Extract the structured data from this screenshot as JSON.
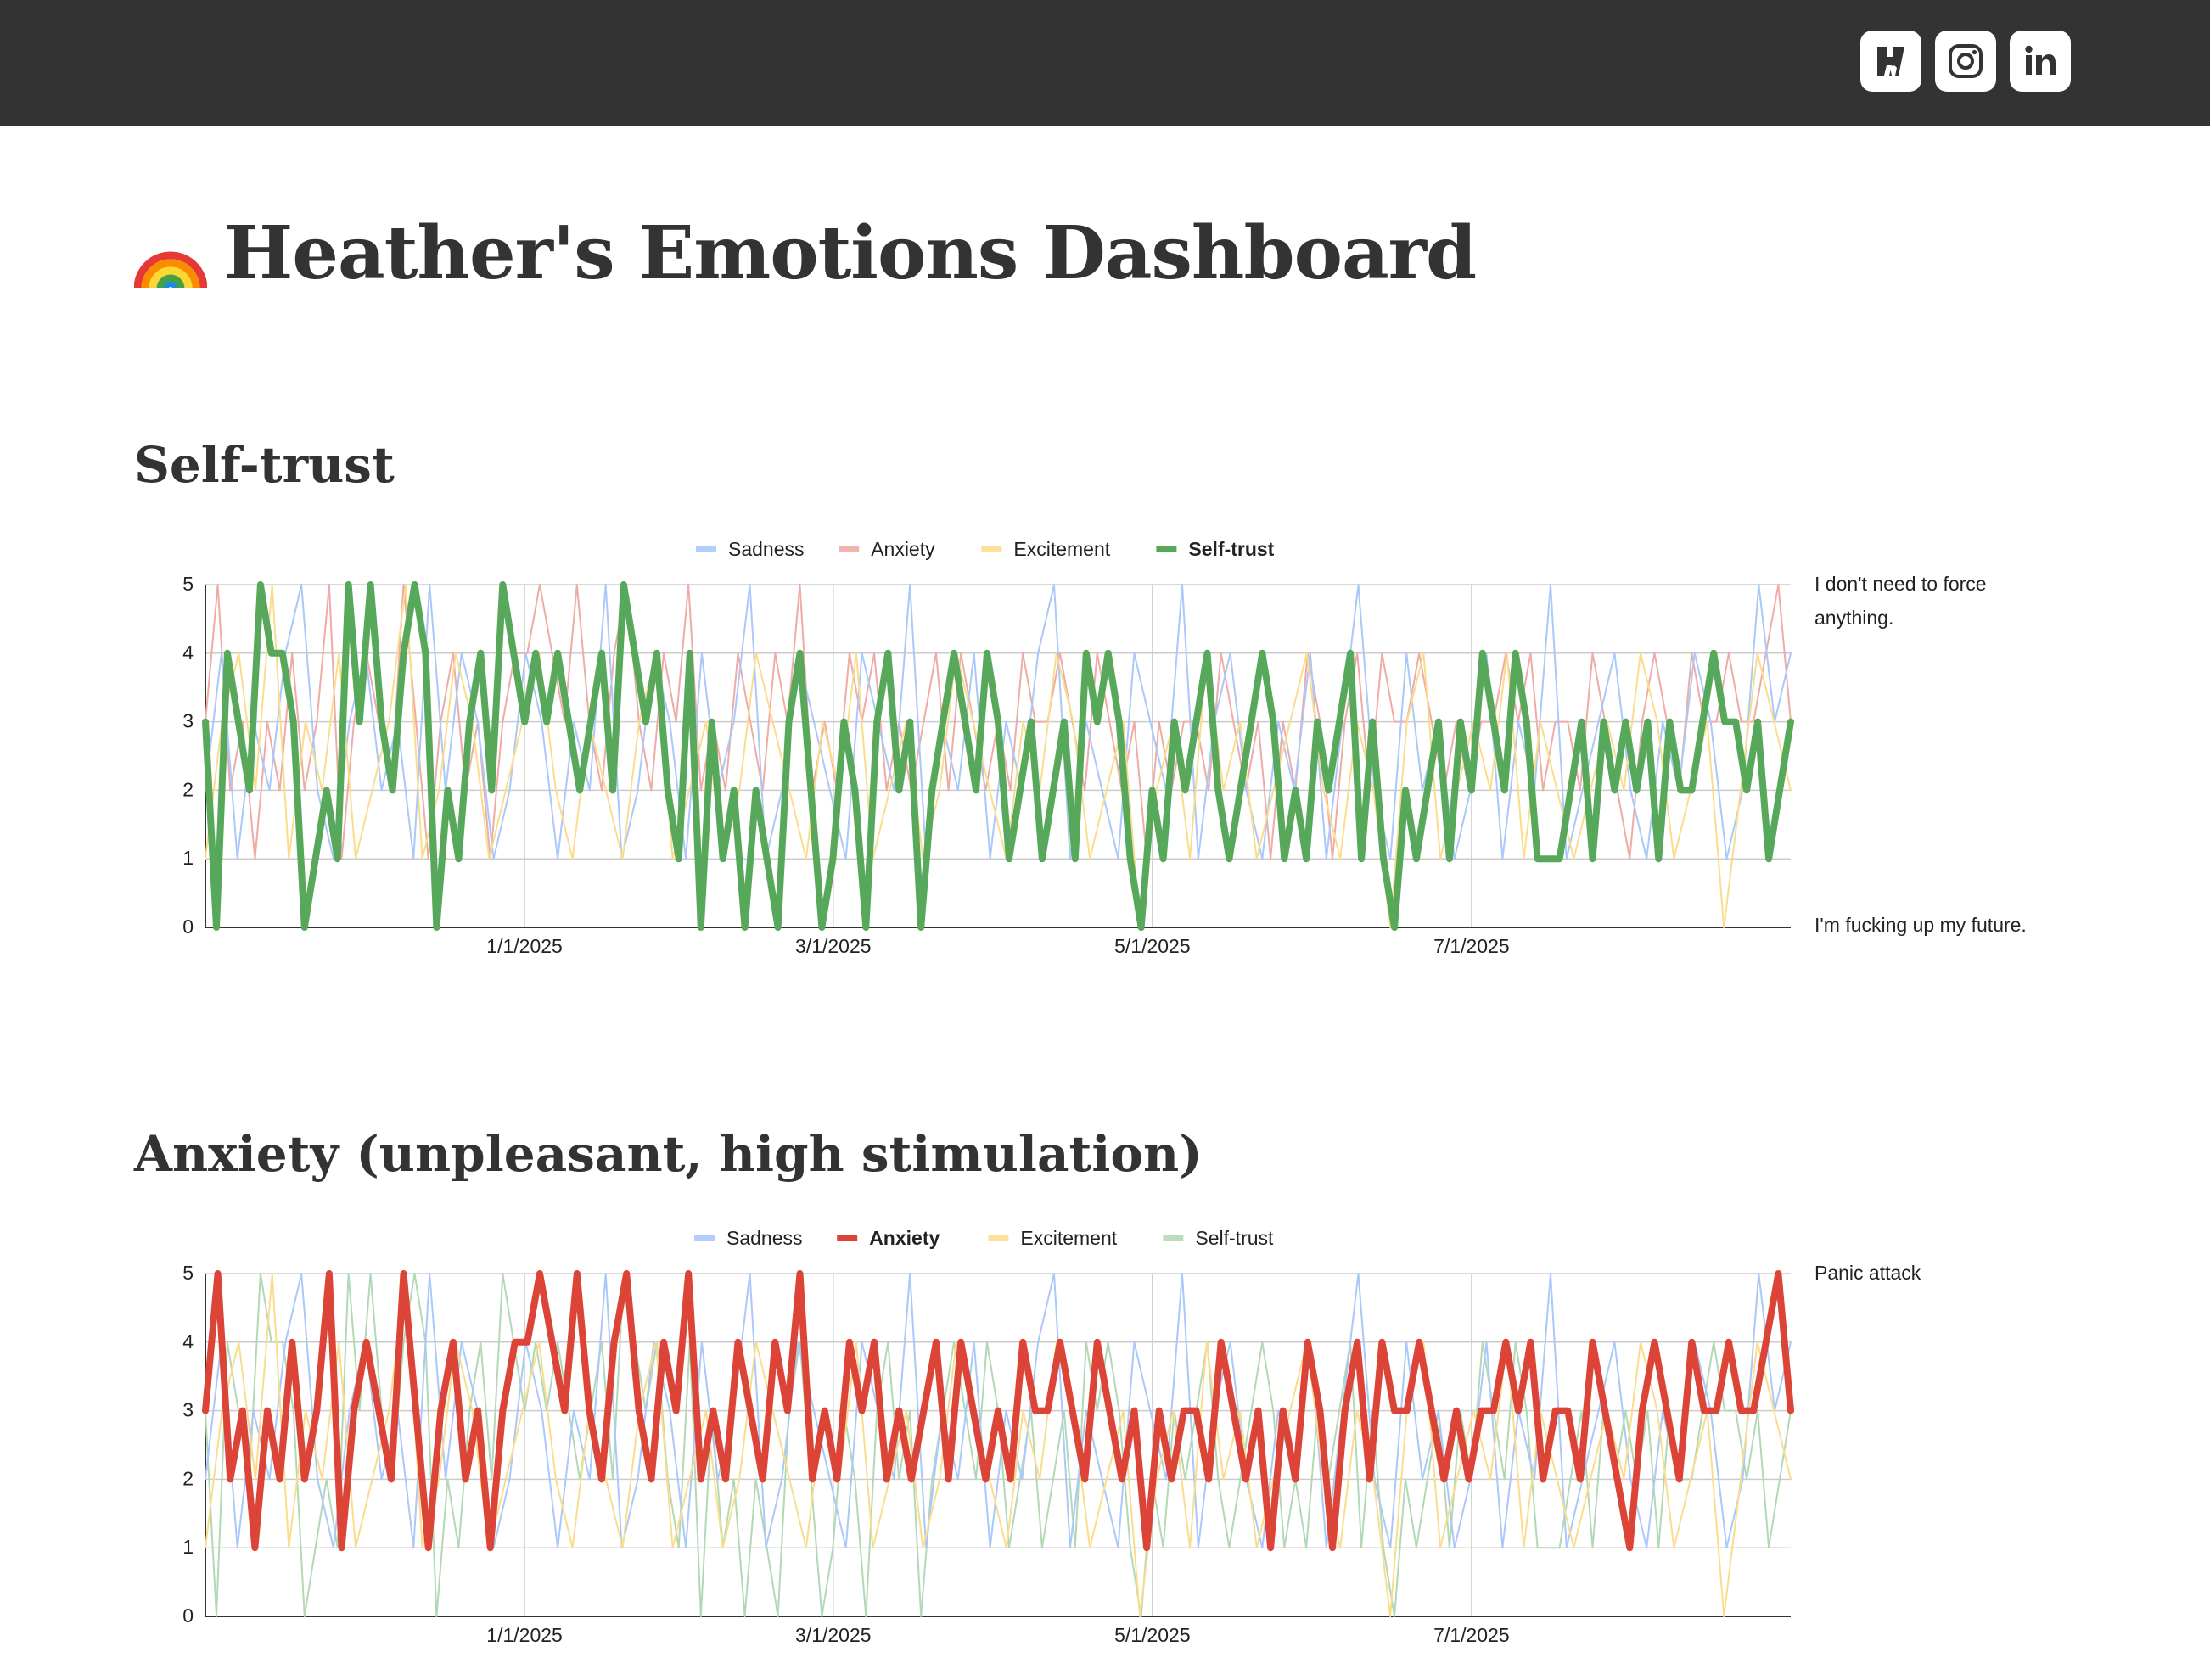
{
  "header": {
    "icons": [
      {
        "name": "hashnode-icon",
        "color": "#333333"
      },
      {
        "name": "instagram-icon",
        "color": "#333333"
      },
      {
        "name": "linkedin-icon",
        "color": "#333333"
      }
    ]
  },
  "page": {
    "title_emoji": "rainbow-icon",
    "title": "Heather's Emotions Dashboard"
  },
  "sections": [
    {
      "title": "Self-trust"
    },
    {
      "title": "Anxiety (unpleasant, high stimulation)"
    }
  ],
  "chart_data": [
    {
      "type": "line",
      "title": "Self-trust",
      "legend": [
        "Sadness",
        "Anxiety",
        "Excitement",
        "Self-trust"
      ],
      "highlighted": "Self-trust",
      "series_colors": {
        "Sadness": "#4285f4",
        "Anxiety": "#db4437",
        "Excitement": "#f4b400",
        "Self-trust": "#57a85a"
      },
      "x_range": [
        "2024-11-01",
        "2025-08-31"
      ],
      "x_ticks": [
        "1/1/2025",
        "3/1/2025",
        "5/1/2025",
        "7/1/2025"
      ],
      "ylim": [
        0,
        5
      ],
      "y_ticks": [
        "0",
        "1",
        "2",
        "3",
        "4",
        "5"
      ],
      "annotations": {
        "top": "I don't need to force anything.",
        "bottom": "I'm fucking up my future."
      },
      "series": [
        {
          "name": "Self-trust",
          "values": [
            3,
            0,
            4,
            3,
            2,
            5,
            4,
            4,
            3,
            0,
            1,
            2,
            1,
            5,
            3,
            5,
            3,
            2,
            4,
            5,
            4,
            0,
            2,
            1,
            3,
            4,
            2,
            5,
            4,
            3,
            4,
            3,
            4,
            3,
            2,
            3,
            4,
            2,
            5,
            4,
            3,
            4,
            2,
            1,
            4,
            0,
            3,
            1,
            2,
            0,
            2,
            1,
            0,
            3,
            4,
            2,
            0,
            1,
            3,
            2,
            0,
            3,
            4,
            2,
            3,
            0,
            2,
            3,
            4,
            3,
            2,
            4,
            3,
            1,
            2,
            3,
            1,
            2,
            3,
            1,
            4,
            3,
            4,
            3,
            1,
            0,
            2,
            1,
            3,
            2,
            3,
            4,
            2,
            1,
            2,
            3,
            4,
            3,
            1,
            2,
            1,
            3,
            2,
            3,
            4,
            1,
            3,
            1,
            0,
            2,
            1,
            2,
            3,
            1,
            3,
            2,
            4,
            3,
            2,
            4,
            3,
            1,
            1,
            1,
            2,
            3,
            1,
            3,
            2,
            3,
            2,
            3,
            1,
            3,
            2,
            2,
            3,
            4,
            3,
            3,
            2,
            3,
            1,
            2,
            3
          ]
        },
        {
          "name": "Anxiety",
          "values": [
            3,
            5,
            2,
            3,
            1,
            3,
            2,
            4,
            2,
            3,
            5,
            1,
            3,
            4,
            3,
            2,
            5,
            3,
            1,
            3,
            4,
            2,
            3,
            1,
            3,
            4,
            4,
            5,
            4,
            3,
            5,
            3,
            2,
            4,
            5,
            3,
            2,
            4,
            3,
            5,
            2,
            3,
            2,
            4,
            3,
            2,
            4,
            3,
            5,
            2,
            3,
            2,
            4,
            3,
            4,
            2,
            3,
            2,
            3,
            4,
            2,
            4,
            3,
            2,
            3,
            2,
            4,
            3,
            3,
            4,
            3,
            2,
            4,
            3,
            2,
            3,
            1,
            3,
            2,
            3,
            3,
            2,
            4,
            3,
            2,
            3,
            1,
            3,
            2,
            4,
            3,
            1,
            3,
            4,
            2,
            4,
            3,
            3,
            4,
            3,
            2,
            3,
            2,
            3,
            3,
            4,
            3,
            4,
            2,
            3,
            3,
            2,
            4,
            3,
            2,
            1,
            3,
            4,
            3,
            2,
            4,
            3,
            3,
            4,
            3,
            3,
            4,
            5,
            3
          ]
        },
        {
          "name": "Sadness",
          "values": [
            2,
            4,
            1,
            3,
            2,
            4,
            5,
            2,
            1,
            3,
            4,
            2,
            3,
            1,
            5,
            2,
            4,
            3,
            1,
            2,
            4,
            3,
            1,
            3,
            2,
            5,
            1,
            2,
            4,
            3,
            1,
            4,
            2,
            3,
            5,
            1,
            2,
            4,
            3,
            2,
            1,
            4,
            3,
            2,
            5,
            1,
            3,
            2,
            4,
            1,
            3,
            2,
            4,
            5,
            1,
            3,
            2,
            1,
            4,
            3,
            2,
            5,
            1,
            3,
            4,
            2,
            1,
            3,
            2,
            4,
            1,
            3,
            5,
            2,
            1,
            4,
            2,
            3,
            1,
            2,
            4,
            1,
            3,
            2,
            5,
            1,
            2,
            3,
            4,
            2,
            1,
            3,
            2,
            4,
            3,
            1,
            2,
            5,
            3,
            4
          ]
        },
        {
          "name": "Excitement",
          "values": [
            1,
            3,
            4,
            2,
            5,
            1,
            3,
            2,
            4,
            1,
            2,
            3,
            5,
            1,
            2,
            4,
            3,
            1,
            2,
            3,
            4,
            2,
            1,
            3,
            2,
            1,
            3,
            4,
            1,
            2,
            3,
            1,
            2,
            4,
            3,
            2,
            1,
            3,
            2,
            4,
            1,
            2,
            3,
            1,
            2,
            4,
            3,
            2,
            1,
            3,
            2,
            4,
            3,
            1,
            2,
            3,
            0,
            2,
            3,
            1,
            4,
            2,
            3,
            1,
            2,
            3,
            4,
            2,
            1,
            3,
            2,
            0,
            3,
            4,
            1,
            2,
            3,
            2,
            4,
            1,
            3,
            2,
            1,
            2,
            3,
            2,
            4,
            3,
            1,
            2,
            3,
            0,
            2,
            4,
            3,
            2
          ]
        }
      ]
    },
    {
      "type": "line",
      "title": "Anxiety (unpleasant, high stimulation)",
      "legend": [
        "Sadness",
        "Anxiety",
        "Excitement",
        "Self-trust"
      ],
      "highlighted": "Anxiety",
      "series_colors": {
        "Sadness": "#4285f4",
        "Anxiety": "#db4437",
        "Excitement": "#f4b400",
        "Self-trust": "#57a85a"
      },
      "x_range": [
        "2024-11-01",
        "2025-08-31"
      ],
      "x_ticks": [
        "1/1/2025",
        "3/1/2025",
        "5/1/2025",
        "7/1/2025"
      ],
      "ylim": [
        0,
        5
      ],
      "y_ticks": [
        "0",
        "1",
        "2",
        "3",
        "4",
        "5"
      ],
      "annotations": {
        "top": "Panic attack",
        "bottom": ""
      },
      "series": [
        {
          "name": "Anxiety",
          "values": [
            3,
            5,
            2,
            3,
            1,
            3,
            2,
            4,
            2,
            3,
            5,
            1,
            3,
            4,
            3,
            2,
            5,
            3,
            1,
            3,
            4,
            2,
            3,
            1,
            3,
            4,
            4,
            5,
            4,
            3,
            5,
            3,
            2,
            4,
            5,
            3,
            2,
            4,
            3,
            5,
            2,
            3,
            2,
            4,
            3,
            2,
            4,
            3,
            5,
            2,
            3,
            2,
            4,
            3,
            4,
            2,
            3,
            2,
            3,
            4,
            2,
            4,
            3,
            2,
            3,
            2,
            4,
            3,
            3,
            4,
            3,
            2,
            4,
            3,
            2,
            3,
            1,
            3,
            2,
            3,
            3,
            2,
            4,
            3,
            2,
            3,
            1,
            3,
            2,
            4,
            3,
            1,
            3,
            4,
            2,
            4,
            3,
            3,
            4,
            3,
            2,
            3,
            2,
            3,
            3,
            4,
            3,
            4,
            2,
            3,
            3,
            2,
            4,
            3,
            2,
            1,
            3,
            4,
            3,
            2,
            4,
            3,
            3,
            4,
            3,
            3,
            4,
            5,
            3
          ]
        },
        {
          "name": "Self-trust",
          "values": [
            3,
            0,
            4,
            3,
            2,
            5,
            4,
            4,
            3,
            0,
            1,
            2,
            1,
            5,
            3,
            5,
            3,
            2,
            4,
            5,
            4,
            0,
            2,
            1,
            3,
            4,
            2,
            5,
            4,
            3,
            4,
            3,
            4,
            3,
            2,
            3,
            4,
            2,
            5,
            4,
            3,
            4,
            2,
            1,
            4,
            0,
            3,
            1,
            2,
            0,
            2,
            1,
            0,
            3,
            4,
            2,
            0,
            1,
            3,
            2,
            0,
            3,
            4,
            2,
            3,
            0,
            2,
            3,
            4,
            3,
            2,
            4,
            3,
            1,
            2,
            3,
            1,
            2,
            3,
            1,
            4,
            3,
            4,
            3,
            1,
            0,
            2,
            1,
            3,
            2,
            3,
            4,
            2,
            1,
            2,
            3,
            4,
            3,
            1,
            2,
            1,
            3,
            2,
            3,
            4,
            1,
            3,
            1,
            0,
            2,
            1,
            2,
            3,
            1,
            3,
            2,
            4,
            3,
            2,
            4,
            3,
            1,
            1,
            1,
            2,
            3,
            1,
            3,
            2,
            3,
            2,
            3,
            1,
            3,
            2,
            2,
            3,
            4,
            3,
            3,
            2,
            3,
            1,
            2,
            3
          ]
        },
        {
          "name": "Sadness",
          "values": [
            2,
            4,
            1,
            3,
            2,
            4,
            5,
            2,
            1,
            3,
            4,
            2,
            3,
            1,
            5,
            2,
            4,
            3,
            1,
            2,
            4,
            3,
            1,
            3,
            2,
            5,
            1,
            2,
            4,
            3,
            1,
            4,
            2,
            3,
            5,
            1,
            2,
            4,
            3,
            2,
            1,
            4,
            3,
            2,
            5,
            1,
            3,
            2,
            4,
            1,
            3,
            2,
            4,
            5,
            1,
            3,
            2,
            1,
            4,
            3,
            2,
            5,
            1,
            3,
            4,
            2,
            1,
            3,
            2,
            4,
            1,
            3,
            5,
            2,
            1,
            4,
            2,
            3,
            1,
            2,
            4,
            1,
            3,
            2,
            5,
            1,
            2,
            3,
            4,
            2,
            1,
            3,
            2,
            4,
            3,
            1,
            2,
            5,
            3,
            4
          ]
        },
        {
          "name": "Excitement",
          "values": [
            1,
            3,
            4,
            2,
            5,
            1,
            3,
            2,
            4,
            1,
            2,
            3,
            5,
            1,
            2,
            4,
            3,
            1,
            2,
            3,
            4,
            2,
            1,
            3,
            2,
            1,
            3,
            4,
            1,
            2,
            3,
            1,
            2,
            4,
            3,
            2,
            1,
            3,
            2,
            4,
            1,
            2,
            3,
            1,
            2,
            4,
            3,
            2,
            1,
            3,
            2,
            4,
            3,
            1,
            2,
            3,
            0,
            2,
            3,
            1,
            4,
            2,
            3,
            1,
            2,
            3,
            4,
            2,
            1,
            3,
            2,
            0,
            3,
            4,
            1,
            2,
            3,
            2,
            4,
            1,
            3,
            2,
            1,
            2,
            3,
            2,
            4,
            3,
            1,
            2,
            3,
            0,
            2,
            4,
            3,
            2
          ]
        }
      ]
    }
  ]
}
